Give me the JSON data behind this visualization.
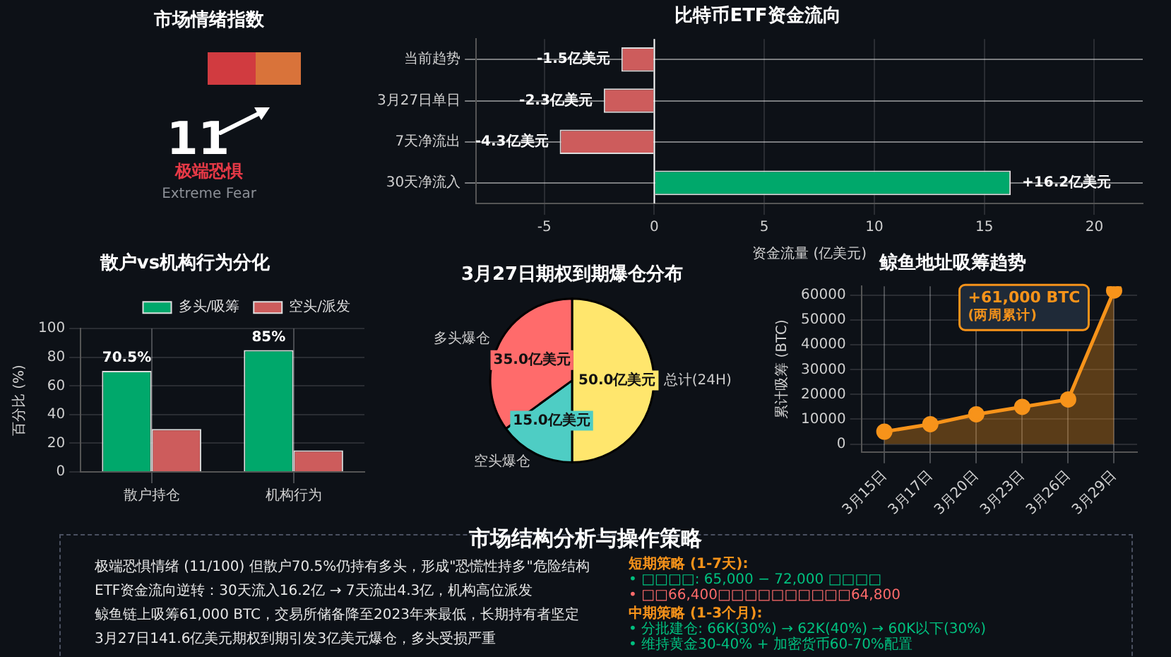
{
  "chart_data": [
    {
      "type": "other",
      "title": "市场情绪指数",
      "annotations": [
        "11",
        "极端恐惧",
        "Extreme Fear"
      ]
    },
    {
      "type": "bar",
      "orientation": "horizontal",
      "title": "比特币ETF资金流向",
      "xlabel": "资金流量 (亿美元)",
      "categories": [
        "当前趋势",
        "3月27日单日",
        "7天净流出",
        "30天净流入"
      ],
      "values": [
        -1.5,
        -2.3,
        -4.3,
        16.2
      ],
      "colors": [
        "#cd5c5c",
        "#cd5c5c",
        "#cd5c5c",
        "#00a86b"
      ],
      "value_labels": [
        "-1.5亿美元",
        "-2.3亿美元",
        "-4.3亿美元",
        "+16.2亿美元"
      ],
      "xlim": [
        -8.1,
        22.2
      ],
      "xticks": [
        -5,
        0,
        5,
        10,
        15,
        20
      ],
      "grid": true,
      "ref_lines": [
        {
          "axis": "x",
          "value": 0,
          "color": "#ffffff"
        }
      ]
    },
    {
      "type": "bar",
      "title": "散户vs机构行为分化",
      "ylabel": "百分比 (%)",
      "categories": [
        "散户持仓",
        "机构行为"
      ],
      "series": [
        {
          "name": "多头/吸筹",
          "color": "#00a86b",
          "values": [
            70.5,
            85
          ],
          "value_labels": [
            "70.5%",
            "85%"
          ]
        },
        {
          "name": "空头/派发",
          "color": "#cd5c5c",
          "values": [
            30,
            15
          ]
        }
      ],
      "ylim": [
        0,
        100
      ],
      "yticks": [
        0,
        20,
        40,
        60,
        80,
        100
      ],
      "grid": true,
      "legend": "top right"
    },
    {
      "type": "pie",
      "title": "3月27日期权到期爆仓分布",
      "categories": [
        "总计(24H)",
        "空头爆仓",
        "多头爆仓"
      ],
      "values": [
        50,
        15,
        35
      ],
      "colors": [
        "#ffe66d",
        "#4ecdc4",
        "#ff6b6b"
      ],
      "value_labels": [
        "50.0亿美元",
        "15.0亿美元",
        "35.0亿美元"
      ]
    },
    {
      "type": "area",
      "title": "鲸鱼地址吸筹趋势",
      "ylabel": "累计吸筹 (BTC)",
      "categories": [
        "3月15日",
        "3月17日",
        "3月20日",
        "3月23日",
        "3月26日",
        "3月29日"
      ],
      "values": [
        5000,
        8000,
        12000,
        15000,
        18000,
        62000
      ],
      "color": "#f7931a",
      "marker": "circle",
      "ylim": [
        -3200,
        63700
      ],
      "yticks": [
        0,
        10000,
        20000,
        30000,
        40000,
        50000,
        60000
      ],
      "grid": true,
      "annotations": [
        {
          "text": "+61,000 BTC\n(两周累计)",
          "x": "3月29日",
          "y": 62000
        }
      ]
    },
    {
      "type": "other",
      "title": "市场结构分析与操作策略",
      "annotations": [
        "极端恐惧情绪 (11/100) 但散户70.5%仍持有多头，形成\"恐慌性持多\"危险结构",
        "ETF资金流向逆转：30天流入16.2亿 → 7天流出4.3亿，机构高位派发",
        "鲸鱼链上吸筹61,000 BTC，交易所储备降至2023年来最低，长期持有者坚定",
        "3月27日141.6亿美元期权到期引发3亿美元爆仓，多头受损严重",
        "短期策略 (1-7天):",
        "• □□□□: 65,000 − 72,000 □□□□",
        "• □□66,400□□□□□□□□□□64,800",
        "中期策略 (1-3个月):",
        "• 分批建仓: 66K(30%) → 62K(40%) → 60K以下(30%)",
        "• 维持黄金30-40% + 加密货币60-70%配置"
      ]
    }
  ]
}
